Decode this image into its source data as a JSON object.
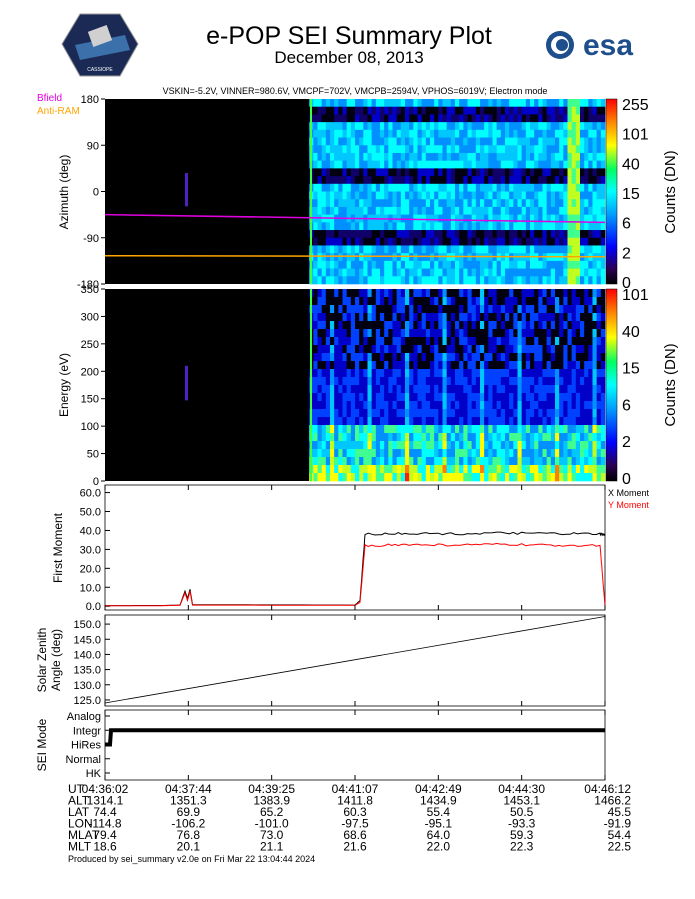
{
  "header": {
    "title": "e-POP SEI Summary Plot",
    "date": "December 08, 2013",
    "params": "VSKIN=-5.2V, VINNER=980.6V, VMCPF=702V, VMCPB=2594V, VPHOS=6019V; Electron mode",
    "logo_left_text": "CASSIOPE",
    "logo_right_text": "esa"
  },
  "colors": {
    "bfield": "#e000e0",
    "anti_ram": "#ffa500",
    "x_moment": "#000000",
    "y_moment": "#ff0000"
  },
  "chart_data": [
    {
      "type": "heatmap",
      "panel": "azimuth",
      "ylabel": "Azimuth (deg)",
      "y_ticks": [
        "180",
        "90",
        "0",
        "-90",
        "-180"
      ],
      "ylim": [
        -180,
        180
      ],
      "colorbar_label": "Counts (DN)",
      "colorbar_ticks": [
        "255",
        "101",
        "40",
        "15",
        "6",
        "2",
        "0"
      ],
      "legend": [
        "Bfield",
        "Anti-RAM"
      ],
      "bfield_line": [
        [
          0,
          -45
        ],
        [
          1,
          -60
        ]
      ],
      "anti_ram_line": [
        [
          0,
          -125
        ],
        [
          1,
          -127
        ]
      ]
    },
    {
      "type": "heatmap",
      "panel": "energy",
      "ylabel": "Energy (eV)",
      "y_ticks": [
        "350",
        "300",
        "250",
        "200",
        "150",
        "100",
        "50",
        "0"
      ],
      "ylim": [
        0,
        350
      ],
      "colorbar_label": "Counts (DN)",
      "colorbar_ticks": [
        "101",
        "40",
        "15",
        "6",
        "2",
        "0"
      ]
    },
    {
      "type": "line",
      "panel": "first_moment",
      "ylabel": "First Moment",
      "y_ticks": [
        "60.0",
        "50.0",
        "40.0",
        "30.0",
        "20.0",
        "10.0",
        "0.0"
      ],
      "ylim": [
        -2,
        64
      ],
      "series": [
        {
          "name": "X Moment",
          "points": [
            [
              0,
              0.3
            ],
            [
              0.12,
              0.4
            ],
            [
              0.15,
              0.6
            ],
            [
              0.16,
              8
            ],
            [
              0.165,
              4
            ],
            [
              0.17,
              9
            ],
            [
              0.175,
              0.8
            ],
            [
              0.5,
              0.6
            ],
            [
              0.51,
              3
            ],
            [
              0.52,
              38
            ],
            [
              0.6,
              38.5
            ],
            [
              0.7,
              38.2
            ],
            [
              0.8,
              38.6
            ],
            [
              0.9,
              38.3
            ],
            [
              0.99,
              38.1
            ],
            [
              1.0,
              37.5
            ]
          ]
        },
        {
          "name": "Y Moment",
          "points": [
            [
              0,
              0.2
            ],
            [
              0.12,
              0.3
            ],
            [
              0.15,
              0.5
            ],
            [
              0.16,
              7
            ],
            [
              0.165,
              3
            ],
            [
              0.17,
              8
            ],
            [
              0.175,
              0.6
            ],
            [
              0.5,
              0.5
            ],
            [
              0.51,
              2
            ],
            [
              0.52,
              32
            ],
            [
              0.6,
              32.5
            ],
            [
              0.7,
              32.3
            ],
            [
              0.8,
              32.6
            ],
            [
              0.9,
              32.1
            ],
            [
              0.99,
              32.2
            ],
            [
              1.0,
              0
            ]
          ]
        }
      ]
    },
    {
      "type": "line",
      "panel": "solar_zenith",
      "ylabel_line1": "Solar Zenith",
      "ylabel_line2": "Angle (deg)",
      "y_ticks": [
        "150.0",
        "145.0",
        "140.0",
        "135.0",
        "130.0",
        "125.0"
      ],
      "ylim": [
        123,
        153
      ],
      "series": [
        {
          "points": [
            [
              0,
              124
            ],
            [
              1,
              152.5
            ]
          ]
        }
      ]
    },
    {
      "type": "line",
      "panel": "sei_mode",
      "ylabel": "SEI Mode",
      "y_ticks": [
        "Analog",
        "Integr",
        "HiRes",
        "Normal",
        "HK"
      ],
      "series": [
        {
          "points": [
            [
              0,
              1
            ],
            [
              0.01,
              1
            ],
            [
              0.012,
              2
            ],
            [
              1,
              2
            ]
          ]
        }
      ]
    }
  ],
  "time_table": {
    "row_labels": [
      "UT",
      "ALT",
      "LAT",
      "LON",
      "MLAT",
      "MLT"
    ],
    "columns": [
      [
        "04:36:02",
        "1314.1",
        "74.4",
        "-114.8",
        "79.4",
        "18.6"
      ],
      [
        "04:37:44",
        "1351.3",
        "69.9",
        "-106.2",
        "76.8",
        "20.1"
      ],
      [
        "04:39:25",
        "1383.9",
        "65.2",
        "-101.0",
        "73.0",
        "21.1"
      ],
      [
        "04:41:07",
        "1411.8",
        "60.3",
        "-97.5",
        "68.6",
        "21.6"
      ],
      [
        "04:42:49",
        "1434.9",
        "55.4",
        "-95.1",
        "64.0",
        "22.0"
      ],
      [
        "04:44:30",
        "1453.1",
        "50.5",
        "-93.3",
        "59.3",
        "22.3"
      ],
      [
        "04:46:12",
        "1466.2",
        "45.5",
        "-91.9",
        "54.4",
        "22.5"
      ]
    ]
  },
  "footer": "Produced by sei_summary v2.0e on Fri Mar 22 13:04:44 2024"
}
